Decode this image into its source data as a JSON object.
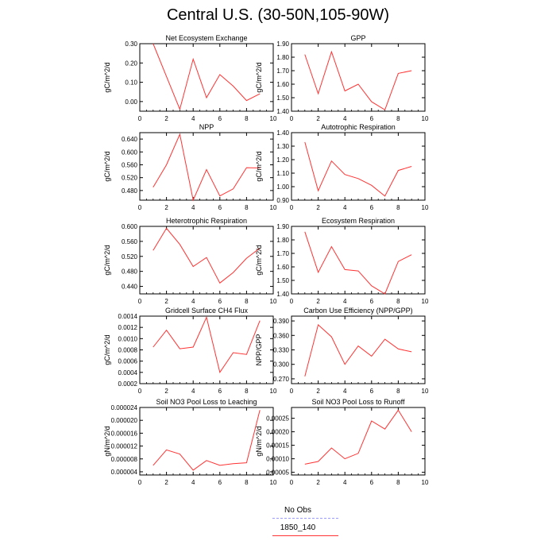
{
  "title": "Central U.S. (30-50N,105-90W)",
  "legend": {
    "items": [
      {
        "label": "No Obs",
        "color": "#9999ff",
        "dash": "dashed"
      },
      {
        "label": "1850_140",
        "color": "#ff3333",
        "dash": "solid"
      }
    ]
  },
  "chart_data": [
    {
      "type": "line",
      "title": "Net Ecosystem Exchange",
      "ylabel": "gC/m^2/d",
      "xlim": [
        0,
        10
      ],
      "xticks": [
        0,
        2,
        4,
        6,
        8,
        10
      ],
      "ylim": [
        -0.05,
        0.3
      ],
      "yticks": [
        "0.00",
        "0.10",
        "0.20",
        "0.30"
      ],
      "x": [
        1,
        2,
        3,
        4,
        5,
        6,
        7,
        8,
        9
      ],
      "series": [
        {
          "values": [
            0.3,
            0.13,
            -0.04,
            0.22,
            0.02,
            0.14,
            0.08,
            0.005,
            0.04
          ]
        }
      ]
    },
    {
      "type": "line",
      "title": "GPP",
      "ylabel": "gC/m^2/d",
      "xlim": [
        0,
        10
      ],
      "xticks": [
        0,
        2,
        4,
        6,
        8,
        10
      ],
      "ylim": [
        1.4,
        1.9
      ],
      "yticks": [
        "1.40",
        "1.50",
        "1.60",
        "1.70",
        "1.80",
        "1.90"
      ],
      "x": [
        1,
        2,
        3,
        4,
        5,
        6,
        7,
        8,
        9
      ],
      "series": [
        {
          "values": [
            1.82,
            1.53,
            1.84,
            1.55,
            1.6,
            1.47,
            1.41,
            1.68,
            1.7
          ]
        }
      ]
    },
    {
      "type": "line",
      "title": "NPP",
      "ylabel": "gC/m^2/d",
      "xlim": [
        0,
        10
      ],
      "xticks": [
        0,
        2,
        4,
        6,
        8,
        10
      ],
      "ylim": [
        0.45,
        0.66
      ],
      "yticks": [
        "0.480",
        "0.520",
        "0.560",
        "0.600",
        "0.640"
      ],
      "x": [
        1,
        2,
        3,
        4,
        5,
        6,
        7,
        8,
        9
      ],
      "series": [
        {
          "values": [
            0.49,
            0.56,
            0.655,
            0.45,
            0.545,
            0.463,
            0.485,
            0.551,
            0.55
          ]
        }
      ]
    },
    {
      "type": "line",
      "title": "Autotrophic Respiration",
      "ylabel": "gC/m^2/d",
      "xlim": [
        0,
        10
      ],
      "xticks": [
        0,
        2,
        4,
        6,
        8,
        10
      ],
      "ylim": [
        0.9,
        1.4
      ],
      "yticks": [
        "0.90",
        "1.00",
        "1.10",
        "1.20",
        "1.30",
        "1.40"
      ],
      "x": [
        1,
        2,
        3,
        4,
        5,
        6,
        7,
        8,
        9
      ],
      "series": [
        {
          "values": [
            1.33,
            0.97,
            1.19,
            1.09,
            1.06,
            1.01,
            0.93,
            1.12,
            1.15
          ]
        }
      ]
    },
    {
      "type": "line",
      "title": "Heterotrophic Respiration",
      "ylabel": "gC/m^2/d",
      "xlim": [
        0,
        10
      ],
      "xticks": [
        0,
        2,
        4,
        6,
        8,
        10
      ],
      "ylim": [
        0.42,
        0.6
      ],
      "yticks": [
        "0.440",
        "0.480",
        "0.520",
        "0.560",
        "0.600"
      ],
      "x": [
        1,
        2,
        3,
        4,
        5,
        6,
        7,
        8,
        9
      ],
      "series": [
        {
          "values": [
            0.536,
            0.595,
            0.552,
            0.493,
            0.517,
            0.449,
            0.477,
            0.515,
            0.542
          ]
        }
      ]
    },
    {
      "type": "line",
      "title": "Ecosystem Respiration",
      "ylabel": "gC/m^2/d",
      "xlim": [
        0,
        10
      ],
      "xticks": [
        0,
        2,
        4,
        6,
        8,
        10
      ],
      "ylim": [
        1.4,
        1.9
      ],
      "yticks": [
        "1.40",
        "1.50",
        "1.60",
        "1.70",
        "1.80",
        "1.90"
      ],
      "x": [
        1,
        2,
        3,
        4,
        5,
        6,
        7,
        8,
        9
      ],
      "series": [
        {
          "values": [
            1.86,
            1.56,
            1.75,
            1.58,
            1.57,
            1.46,
            1.4,
            1.64,
            1.69
          ]
        }
      ]
    },
    {
      "type": "line",
      "title": "Gridcell Surface CH4 Flux",
      "ylabel": "gC/m^2/d",
      "xlim": [
        0,
        10
      ],
      "xticks": [
        0,
        2,
        4,
        6,
        8,
        10
      ],
      "ylim": [
        0.0002,
        0.0014
      ],
      "yticks": [
        "0.0002",
        "0.0004",
        "0.0006",
        "0.0008",
        "0.0010",
        "0.0012",
        "0.0014"
      ],
      "x": [
        1,
        2,
        3,
        4,
        5,
        6,
        7,
        8,
        9
      ],
      "series": [
        {
          "values": [
            0.00085,
            0.00115,
            0.00082,
            0.00085,
            0.00138,
            0.0004,
            0.00075,
            0.00072,
            0.00132
          ]
        }
      ]
    },
    {
      "type": "line",
      "title": "Carbon Use Efficiency (NPP/GPP)",
      "ylabel": "NPP/GPP",
      "xlim": [
        0,
        10
      ],
      "xticks": [
        0,
        2,
        4,
        6,
        8,
        10
      ],
      "ylim": [
        0.26,
        0.4
      ],
      "yticks": [
        "0.270",
        "0.300",
        "0.330",
        "0.360",
        "0.390"
      ],
      "x": [
        1,
        2,
        3,
        4,
        5,
        6,
        7,
        8,
        9
      ],
      "series": [
        {
          "values": [
            0.275,
            0.382,
            0.357,
            0.3,
            0.338,
            0.317,
            0.352,
            0.332,
            0.326
          ]
        }
      ]
    },
    {
      "type": "line",
      "title": "Soil NO3 Pool Loss to Leaching",
      "ylabel": "gN/m^2/d",
      "xlim": [
        0,
        10
      ],
      "xticks": [
        0,
        2,
        4,
        6,
        8,
        10
      ],
      "ylim": [
        3e-06,
        2.4e-05
      ],
      "yticks": [
        "0.000004",
        "0.000008",
        "0.000012",
        "0.000016",
        "0.000020",
        "0.000024"
      ],
      "x": [
        1,
        2,
        3,
        4,
        5,
        6,
        7,
        8,
        9
      ],
      "series": [
        {
          "values": [
            6e-06,
            1.08e-05,
            9.5e-06,
            4.5e-06,
            7.5e-06,
            6e-06,
            6.5e-06,
            6.8e-06,
            2.32e-05
          ]
        }
      ]
    },
    {
      "type": "line",
      "title": "Soil NO3 Pool Loss to Runoff",
      "ylabel": "gN/m^2/d",
      "xlim": [
        0,
        10
      ],
      "xticks": [
        0,
        2,
        4,
        6,
        8,
        10
      ],
      "ylim": [
        4e-05,
        0.00029
      ],
      "yticks": [
        "0.00005",
        "0.00010",
        "0.00015",
        "0.00020",
        "0.00025"
      ],
      "x": [
        1,
        2,
        3,
        4,
        5,
        6,
        7,
        8,
        9
      ],
      "series": [
        {
          "values": [
            8e-05,
            9e-05,
            0.00014,
            0.0001,
            0.00012,
            0.00024,
            0.00021,
            0.00028,
            0.0002
          ]
        }
      ]
    }
  ]
}
